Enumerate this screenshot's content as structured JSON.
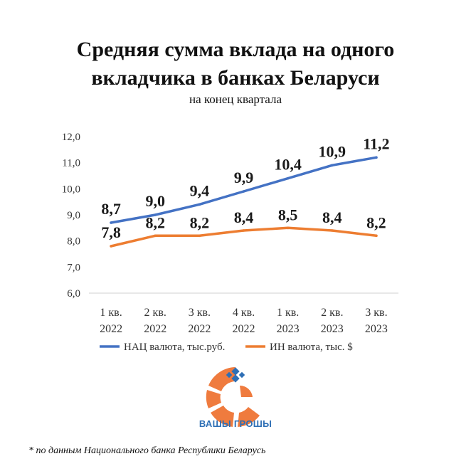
{
  "chart_data": {
    "type": "line",
    "title": [
      "Средняя сумма вклада на одного",
      "вкладчика в банках Беларуси"
    ],
    "subtitle": "на конец квартала",
    "categories": [
      [
        "1 кв.",
        "2022"
      ],
      [
        "2 кв.",
        "2022"
      ],
      [
        "3 кв.",
        "2022"
      ],
      [
        "4 кв.",
        "2022"
      ],
      [
        "1 кв.",
        "2023"
      ],
      [
        "2 кв.",
        "2023"
      ],
      [
        "3 кв.",
        "2023"
      ]
    ],
    "series": [
      {
        "name": "НАЦ валюта, тыс.руб.",
        "color": "#4472c4",
        "values": [
          8.7,
          9.0,
          9.4,
          9.9,
          10.4,
          10.9,
          11.2
        ],
        "labels": [
          "8,7",
          "9,0",
          "9,4",
          "9,9",
          "10,4",
          "10,9",
          "11,2"
        ]
      },
      {
        "name": "ИН валюта, тыс. $",
        "color": "#ed7d31",
        "values": [
          7.8,
          8.2,
          8.2,
          8.4,
          8.5,
          8.4,
          8.2
        ],
        "labels": [
          "7,8",
          "8,2",
          "8,2",
          "8,4",
          "8,5",
          "8,4",
          "8,2"
        ]
      }
    ],
    "ylim": [
      6.0,
      12.0
    ],
    "yticks": [
      6.0,
      7.0,
      8.0,
      9.0,
      10.0,
      11.0,
      12.0
    ],
    "ytick_labels": [
      "6,0",
      "7,0",
      "8,0",
      "9,0",
      "10,0",
      "11,0",
      "12,0"
    ],
    "grid": false,
    "legend_position": "bottom"
  },
  "logo": {
    "text": "ВАШЫ ГРОШЫ",
    "primary_color": "#ef7b3e",
    "accent_color": "#2e6fb5"
  },
  "footnote": "* по данным Национального банка Республики Беларусь"
}
